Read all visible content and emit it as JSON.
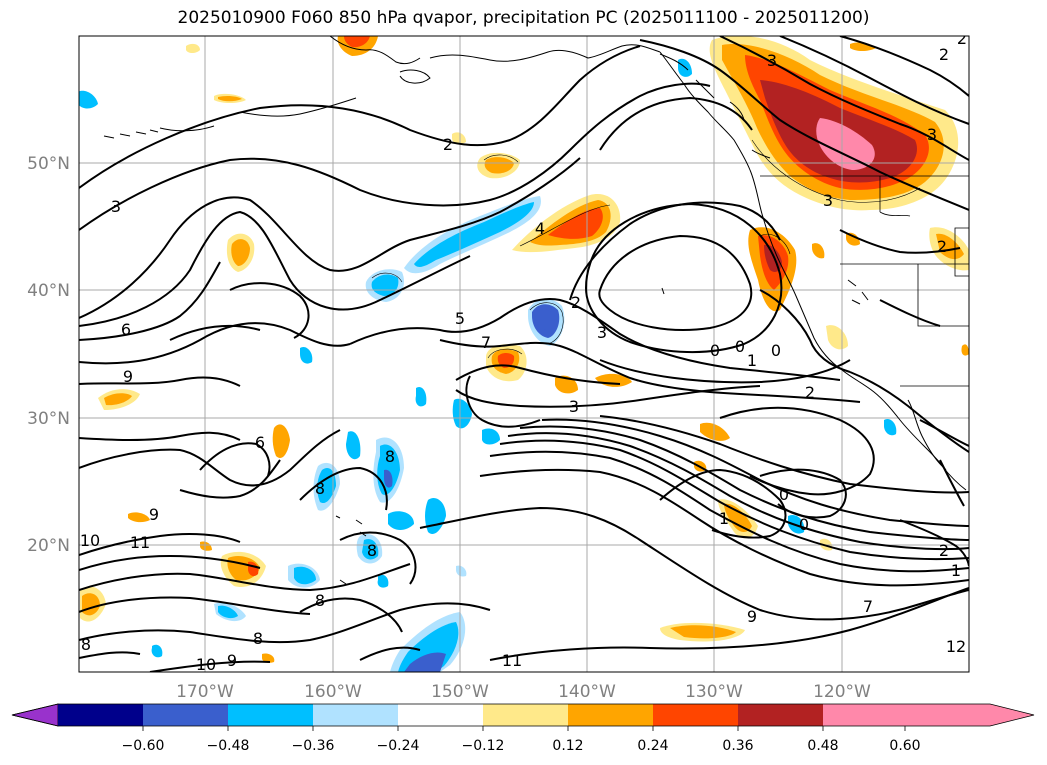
{
  "title": "2025010900 F060 850 hPa qvapor, precipitation PC (2025011100 - 2025011200)",
  "map": {
    "lat_labels": [
      "50°N",
      "40°N",
      "30°N",
      "20°N"
    ],
    "lon_labels": [
      "170°W",
      "160°W",
      "150°W",
      "140°W",
      "130°W",
      "120°W"
    ],
    "gridlines": true
  },
  "colorbar": {
    "colors": [
      "#9932CC",
      "#00008B",
      "#3A5FCD",
      "#00BFFF",
      "#B0E2FF",
      "#FFFFFF",
      "#FFE98A",
      "#FFA500",
      "#FF4500",
      "#B22222",
      "#FF88AA"
    ],
    "tick_labels": [
      "−0.60",
      "−0.48",
      "−0.36",
      "−0.24",
      "−0.12",
      "0.12",
      "0.24",
      "0.36",
      "0.48",
      "0.60"
    ],
    "extend": "both"
  },
  "contour_labels": [
    "2",
    "3",
    "4",
    "5",
    "7",
    "6",
    "9",
    "2",
    "3",
    "0",
    "0",
    "0",
    "1",
    "2",
    "3",
    "3",
    "2",
    "6",
    "8",
    "8",
    "8",
    "8",
    "9",
    "10",
    "11",
    "8",
    "8",
    "10",
    "9",
    "11",
    "9",
    "7",
    "0",
    "0",
    "1",
    "2",
    "1",
    "12",
    "2",
    "3",
    "2",
    "3"
  ]
}
